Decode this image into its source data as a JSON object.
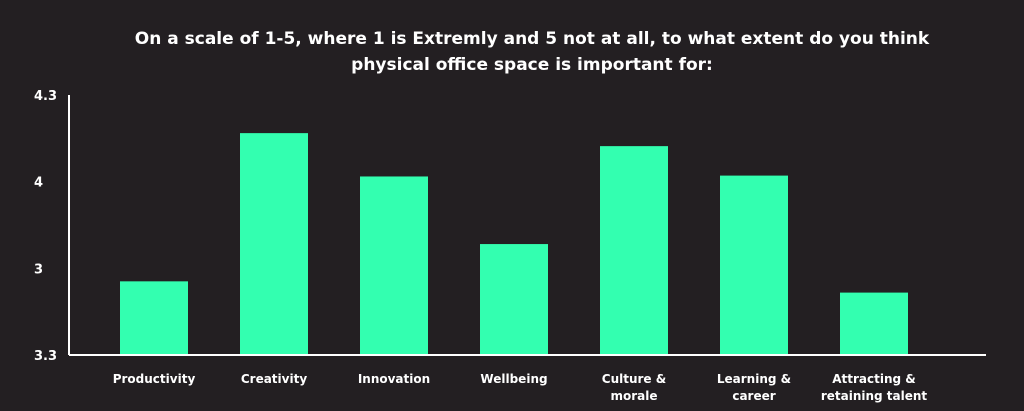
{
  "chart_data": {
    "type": "bar",
    "title_lines": [
      "On a scale of 1-5, where 1 is Extremly and 5 not at all, to what extent do you think",
      "physical office space is important for:"
    ],
    "categories": [
      [
        "Productivity"
      ],
      [
        "Creativity"
      ],
      [
        "Innovation"
      ],
      [
        "Wellbeing"
      ],
      [
        "Culture &",
        "morale"
      ],
      [
        "Learning &",
        "career"
      ],
      [
        "Attracting &",
        "retaining talent"
      ]
    ],
    "values": [
      0.85,
      2.56,
      2.06,
      1.28,
      2.41,
      2.07,
      0.72
    ],
    "ylim": [
      0,
      3.0
    ],
    "yticks": [
      {
        "label": "3.3",
        "value": 0
      },
      {
        "label": "3",
        "value": 1
      },
      {
        "label": "4",
        "value": 2
      },
      {
        "label": "4.3",
        "value": 3
      }
    ],
    "colors": {
      "background": "#231f22",
      "bar": "#33ffb0",
      "axis": "#ffffff",
      "text": "#ffffff"
    },
    "grid": false,
    "legend": "none"
  }
}
